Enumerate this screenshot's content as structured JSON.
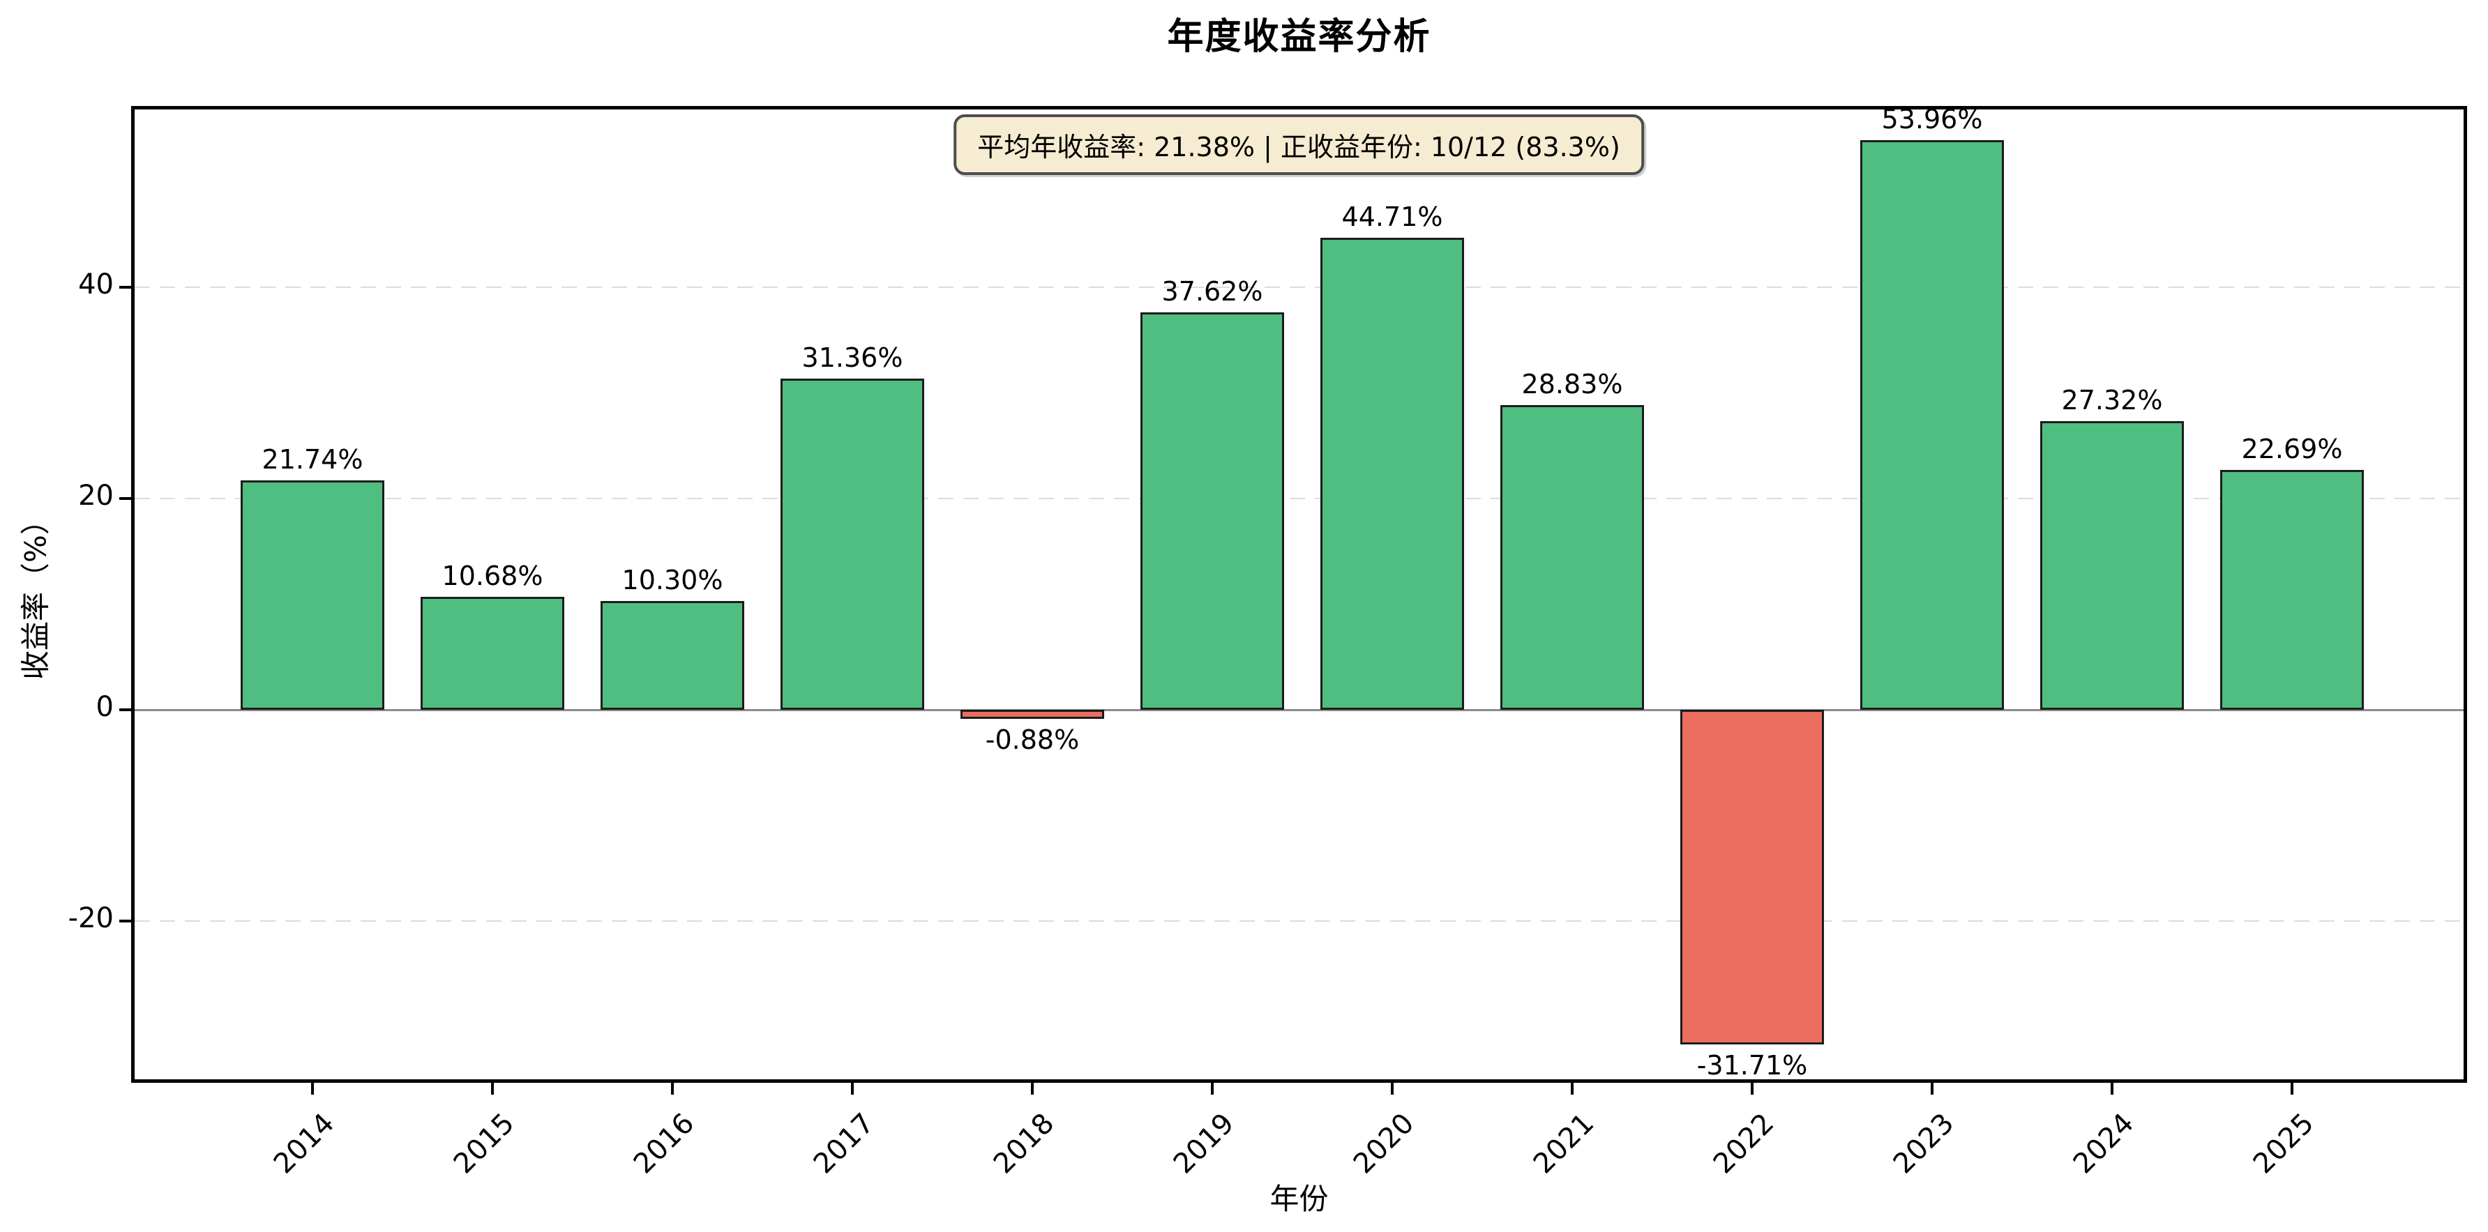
{
  "figure": {
    "title": "年度收益率分析"
  },
  "stats": {
    "banner": "平均年收益率: 21.38% | 正收益年份: 10/12 (83.3%)"
  },
  "chart_data": {
    "type": "bar",
    "title": "年度收益率分析",
    "xlabel": "年份",
    "ylabel": "收益率（%）",
    "categories": [
      "2014",
      "2015",
      "2016",
      "2017",
      "2018",
      "2019",
      "2020",
      "2021",
      "2022",
      "2023",
      "2024",
      "2025"
    ],
    "values": [
      21.74,
      10.68,
      10.3,
      31.36,
      -0.88,
      37.62,
      44.71,
      28.83,
      -31.71,
      53.96,
      27.32,
      22.69
    ],
    "bar_labels": [
      "21.74%",
      "10.68%",
      "10.30%",
      "31.36%",
      "-0.88%",
      "37.62%",
      "44.71%",
      "28.83%",
      "-31.71%",
      "53.96%",
      "27.32%",
      "22.69%"
    ],
    "yticks": [
      -20,
      0,
      20,
      40
    ],
    "ytick_labels": [
      "-20",
      "0",
      "20",
      "40"
    ],
    "ylim": [
      -35.3,
      57.2
    ],
    "grid": {
      "horizontal_dashed_at_yticks": true,
      "zero_line_solid": true
    },
    "legend_position": "none",
    "annotation": "平均年收益率: 21.38% | 正收益年份: 10/12 (83.3%)",
    "colors": {
      "bar_positive": "#50be80",
      "bar_negative": "#ec6e61",
      "bar_edge": "#1c1c1c",
      "zero_line": "#8c8c8c",
      "grid_line": "#dcdcdc",
      "stat_box_bg": "#f6ecd2",
      "stat_box_border": "#4d4d4d",
      "text": "#000000"
    }
  }
}
